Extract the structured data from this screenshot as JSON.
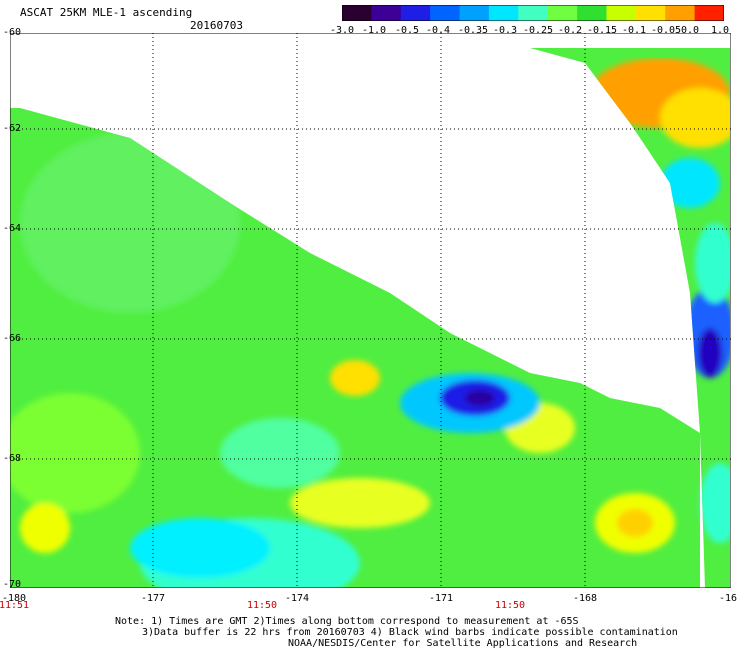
{
  "header": {
    "title": "ASCAT 25KM MLE-1 ascending",
    "date": "20160703"
  },
  "colorbar": {
    "labels": [
      "-3.0",
      "-1.0",
      "-0.5",
      "-0.4",
      "-0.35",
      "-0.3",
      "-0.25",
      "-0.2",
      "-0.15",
      "-0.1",
      "-0.05",
      "0.0",
      "1.0"
    ],
    "colors": [
      "#2a0030",
      "#3c0096",
      "#1e1ee6",
      "#0064ff",
      "#00a0ff",
      "#00e6ff",
      "#40ffc0",
      "#70ff40",
      "#30e030",
      "#c8ff00",
      "#ffe000",
      "#ffa000",
      "#ff2000"
    ]
  },
  "axes": {
    "lat_labels": [
      "-60",
      "-62",
      "-64",
      "-66",
      "-68",
      "-70"
    ],
    "lon_labels": [
      "-180",
      "-177",
      "-174",
      "-171",
      "-168",
      "-16"
    ],
    "time_labels": [
      "11:51",
      "11:50",
      "11:50"
    ]
  },
  "notes": {
    "line1": "Note: 1) Times are GMT 2)Times along bottom correspond to measurement at -65S",
    "line2": "3)Data buffer is 22 hrs from 20160703 4) Black wind barbs indicate possible contamination",
    "line3": "NOAA/NESDIS/Center for Satellite Applications and Research"
  }
}
